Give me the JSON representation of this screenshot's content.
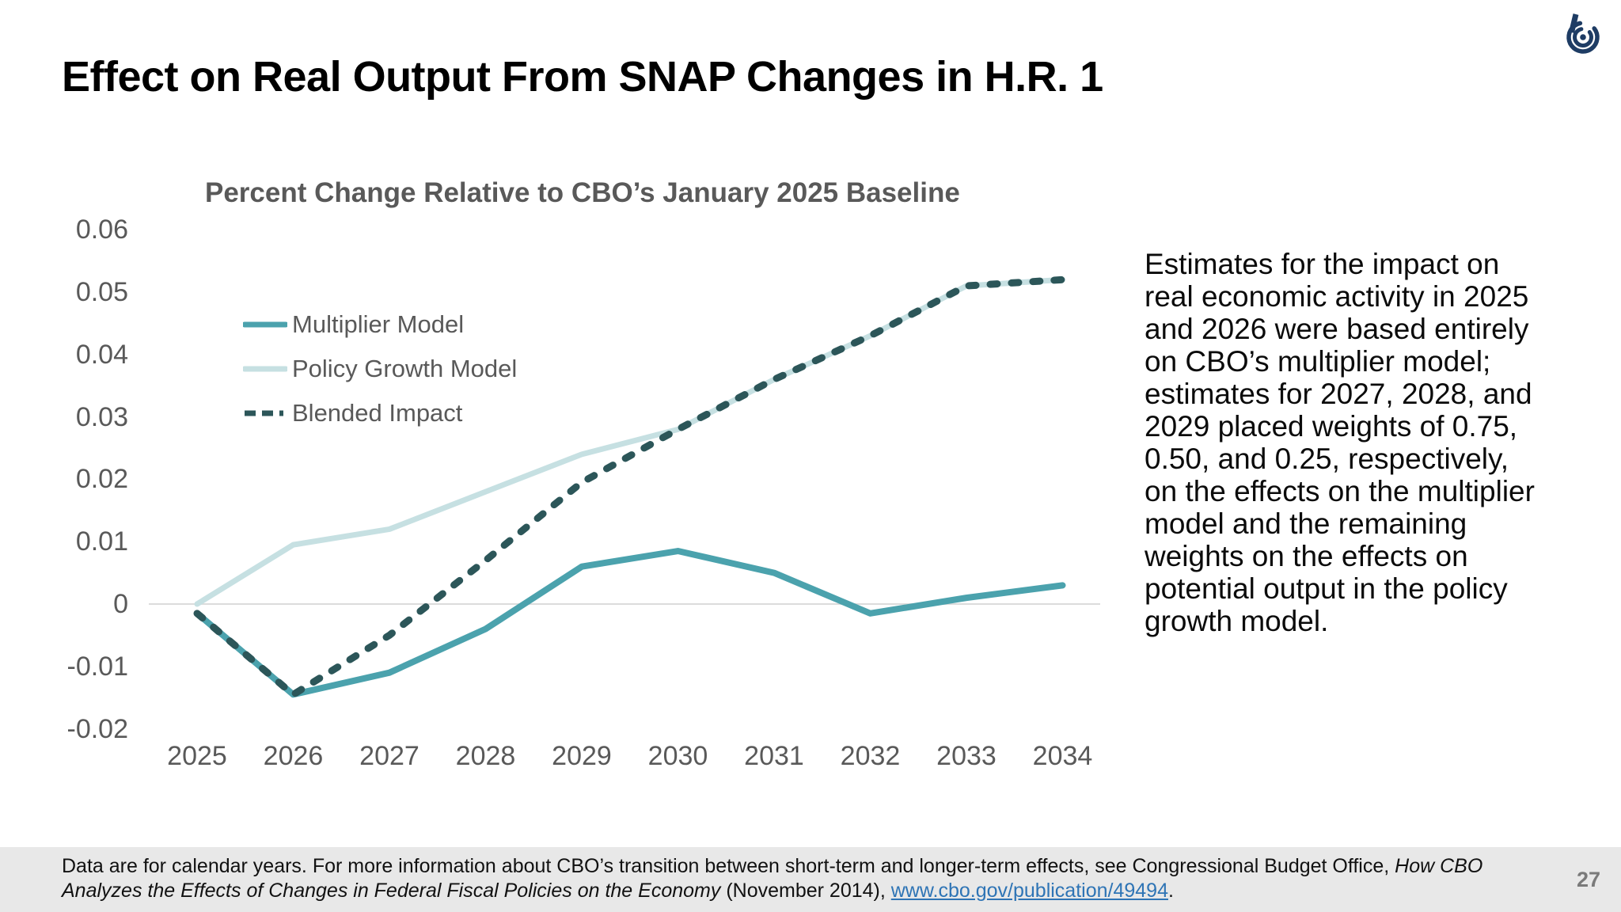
{
  "slide": {
    "title": "Effect on Real Output From SNAP Changes in H.R. 1",
    "page_number": "27"
  },
  "annotation": {
    "text": "Estimates for the impact on real economic activity in 2025 and 2026 were based entirely on CBO’s multiplier model; estimates for 2027, 2028, and 2029 placed weights of 0.75, 0.50, and 0.25, respectively, on the effects on the multiplier model and the remaining weights on the effects on potential output in the policy growth model."
  },
  "footnote": {
    "parts": [
      {
        "t": "Data are for calendar years. For more information about CBO’s transition between short-term and longer-term effects, see Congressional Budget Office, ",
        "s": "n"
      },
      {
        "t": "How CBO Analyzes the Effects of Changes in Federal Fiscal Policies on the Economy",
        "s": "i"
      },
      {
        "t": " (November 2014), ",
        "s": "n"
      },
      {
        "t": "www.cbo.gov/publication/49494",
        "s": "l"
      },
      {
        "t": ".",
        "s": "n"
      }
    ]
  },
  "chart_data": {
    "type": "line",
    "title": "Percent Change Relative to CBO’s January 2025 Baseline",
    "categories": [
      "2025",
      "2026",
      "2027",
      "2028",
      "2029",
      "2030",
      "2031",
      "2032",
      "2033",
      "2034"
    ],
    "series": [
      {
        "id": "multiplier-model",
        "name": "Multiplier Model",
        "color": "#4BA2AD",
        "line_style": "solid",
        "width": 8,
        "values": [
          -0.0015,
          -0.0145,
          -0.011,
          -0.004,
          0.006,
          0.0085,
          0.005,
          -0.0015,
          0.001,
          0.003
        ]
      },
      {
        "id": "policy-growth-model",
        "name": "Policy Growth Model",
        "color": "#C6E0E2",
        "line_style": "solid",
        "width": 7,
        "values": [
          0.0,
          0.0095,
          0.012,
          0.018,
          0.024,
          0.028,
          0.036,
          0.043,
          0.051,
          0.052
        ]
      },
      {
        "id": "blended-impact",
        "name": "Blended Impact",
        "color": "#2C5659",
        "line_style": "dashed",
        "width": 9,
        "values": [
          -0.0015,
          -0.0145,
          -0.005,
          0.007,
          0.0195,
          0.028,
          0.036,
          0.043,
          0.051,
          0.052
        ]
      }
    ],
    "xlabel": "",
    "ylabel": "",
    "ylim": [
      -0.02,
      0.06
    ],
    "y_ticks": [
      {
        "label": "0.06",
        "value": 0.06
      },
      {
        "label": "0.05",
        "value": 0.05
      },
      {
        "label": "0.04",
        "value": 0.04
      },
      {
        "label": "0.03",
        "value": 0.03
      },
      {
        "label": "0.02",
        "value": 0.02
      },
      {
        "label": "0.01",
        "value": 0.01
      },
      {
        "label": "0",
        "value": 0
      },
      {
        "label": "-0.01",
        "value": -0.01
      },
      {
        "label": "-0.02",
        "value": -0.02
      }
    ],
    "grid": "zero-line-only",
    "legend_position": "inside-upper-left"
  },
  "colors": {
    "zero_gridline": "#DCDCDC",
    "axis_text": "#595959",
    "subtitle_text": "#595959",
    "link": "#2E74B5",
    "footer_bg": "#E8E8E8",
    "logo_navy": "#1E3C64",
    "page_number": "#7a7a7a"
  }
}
